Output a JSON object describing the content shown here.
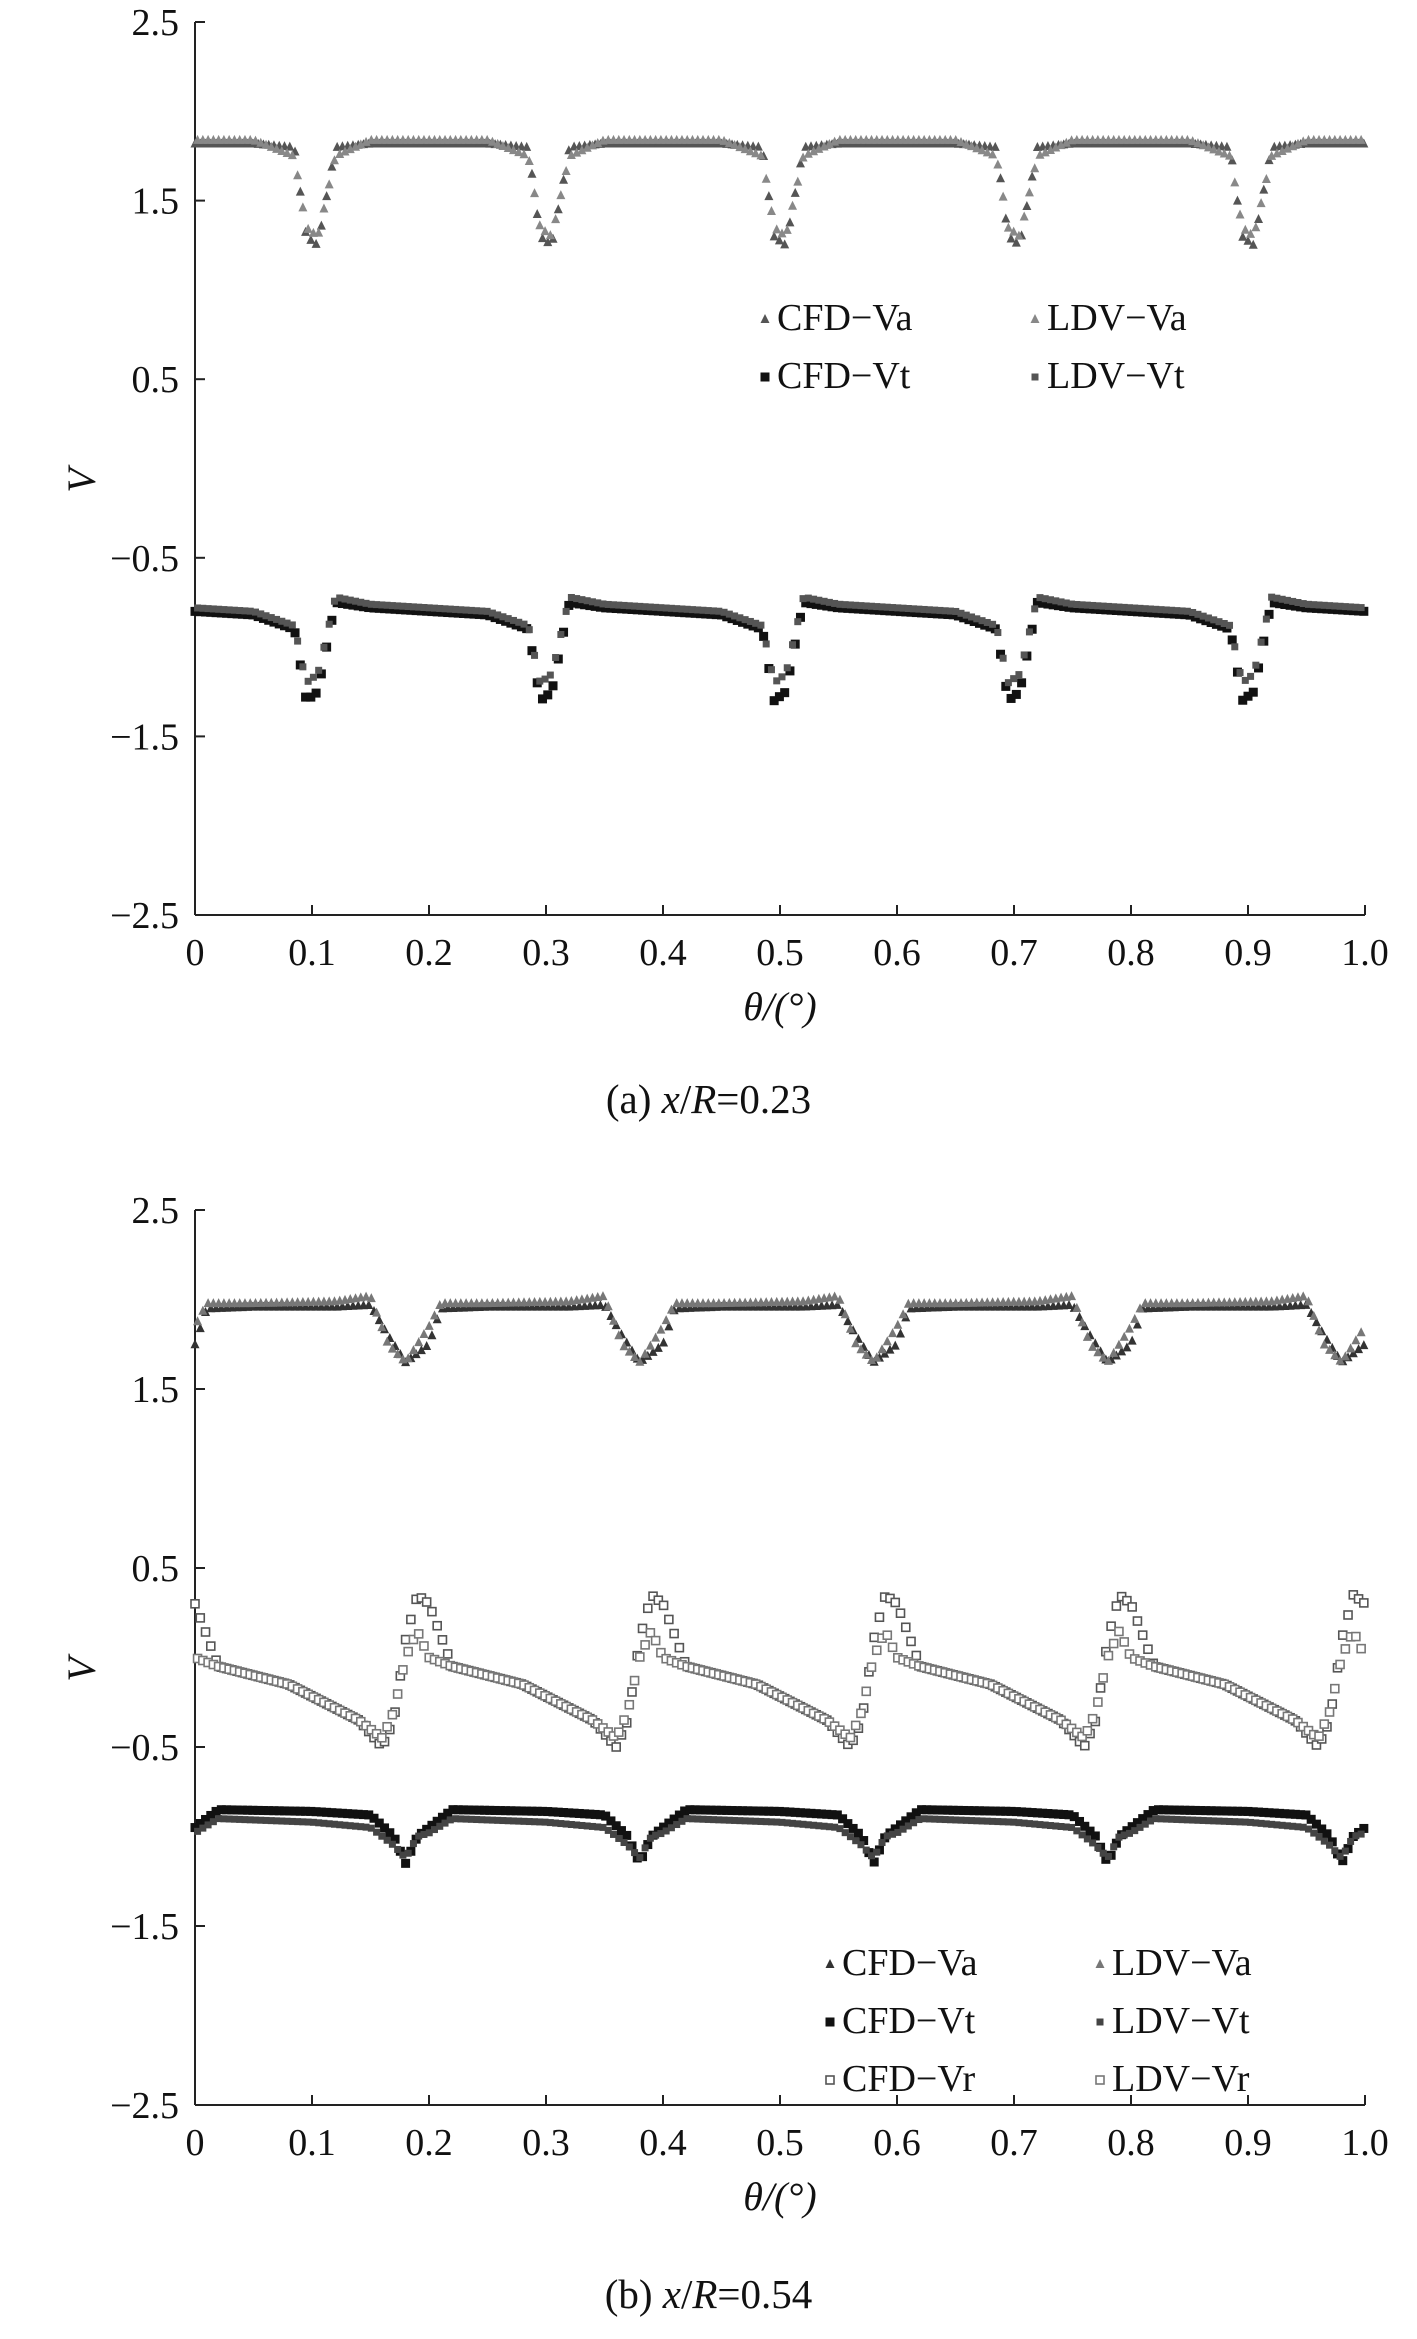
{
  "chart_data": [
    {
      "type": "scatter",
      "ylabel": "V",
      "xlabel": "θ/(°)",
      "caption": "(a) x/R=0.23",
      "caption_parts": {
        "prefix": "(a) ",
        "x": "x",
        "slash": "/",
        "R": "R",
        "value": "=0.23"
      },
      "xlim": [
        0,
        1.0
      ],
      "ylim": [
        -2.5,
        2.5
      ],
      "x_ticks": [
        "0",
        "0.1",
        "0.2",
        "0.3",
        "0.4",
        "0.5",
        "0.6",
        "0.7",
        "0.8",
        "0.9",
        "1.0"
      ],
      "y_ticks": [
        "2.5",
        "1.5",
        "0.5",
        "−0.5",
        "−1.5",
        "−2.5"
      ],
      "legend_position": "right, middle-upper",
      "legend": [
        "CFD−Va",
        "LDV−Va",
        "CFD−Vt",
        "LDV−Vt"
      ],
      "blade_period": 0.2,
      "series": [
        {
          "name": "CFD−Va",
          "marker": "triangle",
          "color": "#555555",
          "x": [
            0.0,
            0.05,
            0.085,
            0.095,
            0.105,
            0.12,
            0.15,
            0.2
          ],
          "y": [
            1.82,
            1.82,
            1.8,
            1.3,
            1.25,
            1.8,
            1.82,
            1.82
          ]
        },
        {
          "name": "LDV−Va",
          "marker": "triangle",
          "color": "#888888",
          "x": [
            0.0,
            0.05,
            0.085,
            0.095,
            0.105,
            0.12,
            0.15,
            0.2
          ],
          "y": [
            1.84,
            1.84,
            1.75,
            1.35,
            1.3,
            1.75,
            1.84,
            1.84
          ]
        },
        {
          "name": "CFD−Vt",
          "marker": "square-filled",
          "color": "#111111",
          "x": [
            0.0,
            0.05,
            0.085,
            0.095,
            0.105,
            0.12,
            0.15,
            0.2
          ],
          "y": [
            -0.8,
            -0.82,
            -0.9,
            -1.3,
            -1.25,
            -0.75,
            -0.78,
            -0.8
          ]
        },
        {
          "name": "LDV−Vt",
          "marker": "square-small",
          "color": "#555555",
          "x": [
            0.0,
            0.05,
            0.085,
            0.095,
            0.105,
            0.12,
            0.15,
            0.2
          ],
          "y": [
            -0.78,
            -0.8,
            -0.88,
            -1.2,
            -1.15,
            -0.72,
            -0.76,
            -0.78
          ]
        }
      ]
    },
    {
      "type": "scatter",
      "ylabel": "V",
      "xlabel": "θ/(°)",
      "caption": "(b) x/R=0.54",
      "caption_parts": {
        "prefix": "(b) ",
        "x": "x",
        "slash": "/",
        "R": "R",
        "value": "=0.54"
      },
      "xlim": [
        0,
        1.0
      ],
      "ylim": [
        -2.5,
        2.5
      ],
      "x_ticks": [
        "0",
        "0.1",
        "0.2",
        "0.3",
        "0.4",
        "0.5",
        "0.6",
        "0.7",
        "0.8",
        "0.9",
        "1.0"
      ],
      "y_ticks": [
        "2.5",
        "1.5",
        "0.5",
        "−0.5",
        "−1.5",
        "−2.5"
      ],
      "legend_position": "bottom-right",
      "legend": [
        "CFD−Va",
        "LDV−Va",
        "CFD−Vt",
        "LDV−Vt",
        "CFD−Vr",
        "LDV−Vr"
      ],
      "blade_period": 0.2,
      "series": [
        {
          "name": "CFD−Va",
          "marker": "triangle",
          "color": "#333333",
          "x": [
            0.0,
            0.01,
            0.05,
            0.12,
            0.15,
            0.165,
            0.18,
            0.2
          ],
          "y": [
            1.75,
            1.95,
            1.96,
            1.96,
            1.97,
            1.8,
            1.65,
            1.75
          ]
        },
        {
          "name": "LDV−Va",
          "marker": "triangle",
          "color": "#777777",
          "x": [
            0.0,
            0.01,
            0.05,
            0.12,
            0.15,
            0.165,
            0.18,
            0.2
          ],
          "y": [
            1.85,
            1.98,
            1.98,
            1.99,
            2.02,
            1.75,
            1.65,
            1.85
          ]
        },
        {
          "name": "CFD−Vt",
          "marker": "square-filled",
          "color": "#111111",
          "x": [
            0.0,
            0.02,
            0.1,
            0.15,
            0.17,
            0.18,
            0.19,
            0.2
          ],
          "y": [
            -0.95,
            -0.85,
            -0.86,
            -0.88,
            -1.0,
            -1.15,
            -1.0,
            -0.95
          ]
        },
        {
          "name": "LDV−Vt",
          "marker": "square-small",
          "color": "#444444",
          "x": [
            0.0,
            0.02,
            0.1,
            0.15,
            0.17,
            0.18,
            0.19,
            0.2
          ],
          "y": [
            -0.98,
            -0.9,
            -0.92,
            -0.95,
            -1.05,
            -1.12,
            -1.0,
            -0.98
          ]
        },
        {
          "name": "CFD−Vr",
          "marker": "square-open",
          "color": "#555555",
          "x": [
            0.0,
            0.02,
            0.08,
            0.14,
            0.16,
            0.17,
            0.18,
            0.19,
            0.2
          ],
          "y": [
            0.3,
            -0.05,
            -0.15,
            -0.35,
            -0.5,
            -0.35,
            0.1,
            0.35,
            0.3
          ]
        },
        {
          "name": "LDV−Vr",
          "marker": "square-open",
          "color": "#777777",
          "x": [
            0.0,
            0.02,
            0.08,
            0.14,
            0.16,
            0.17,
            0.18,
            0.19,
            0.2
          ],
          "y": [
            0.0,
            -0.05,
            -0.15,
            -0.35,
            -0.45,
            -0.3,
            0.0,
            0.15,
            0.0
          ]
        }
      ]
    }
  ]
}
